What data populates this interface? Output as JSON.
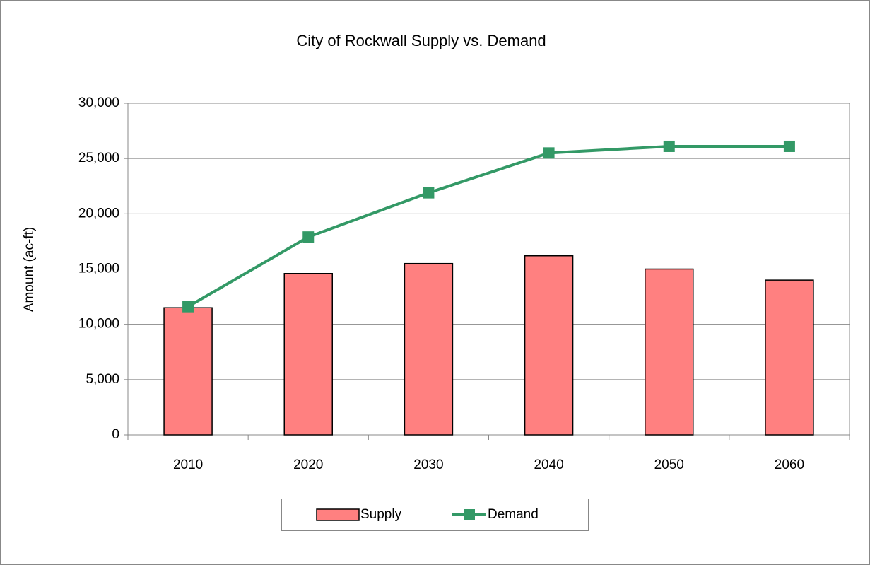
{
  "chart_data": {
    "type": "combo",
    "title": "City of Rockwall Supply vs. Demand",
    "y_label": "Amount (ac-ft)",
    "categories": [
      "2010",
      "2020",
      "2030",
      "2040",
      "2050",
      "2060"
    ],
    "series": [
      {
        "name": "Supply",
        "type": "bar",
        "color": "#ff8080",
        "values": [
          11500,
          14600,
          15500,
          16200,
          15000,
          14000
        ]
      },
      {
        "name": "Demand",
        "type": "line",
        "color": "#339966",
        "values": [
          11600,
          17900,
          21900,
          25500,
          26100,
          26100
        ]
      }
    ],
    "ylim": [
      0,
      30000
    ],
    "yticks": [
      0,
      {
        "value": 5000,
        "label": "5,000"
      },
      {
        "value": 10000,
        "label": "10,000"
      },
      {
        "value": 15000,
        "label": "15,000"
      },
      {
        "value": 20000,
        "label": "20,000"
      },
      {
        "value": 25000,
        "label": "25,000"
      },
      {
        "value": 30000,
        "label": "30,000"
      }
    ],
    "grid": true,
    "legend": "bottom"
  }
}
